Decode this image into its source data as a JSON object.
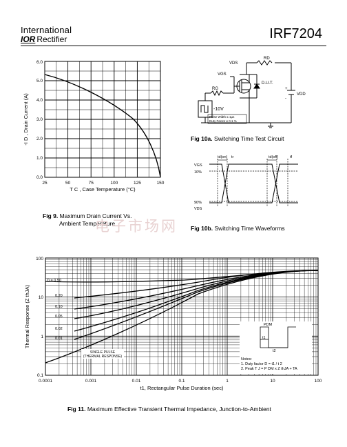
{
  "header": {
    "company_line1": "International",
    "company_logo": "IOR",
    "company_line2": "Rectifier",
    "part_number": "IRF7204"
  },
  "watermark": "电子市场网",
  "fig9": {
    "caption_num": "Fig 9.",
    "caption_line1": "Maximum Drain Current Vs.",
    "caption_line2": "Ambient Temperature",
    "ylabel": "-I D , Drain Current (A)",
    "xlabel": "T C , Case Temperature   (°C)",
    "yticks": [
      "0.0",
      "1.0",
      "2.0",
      "3.0",
      "4.0",
      "5.0",
      "6.0"
    ],
    "xticks": [
      "25",
      "50",
      "75",
      "100",
      "125",
      "150"
    ]
  },
  "fig10a": {
    "caption_num": "Fig 10a.",
    "caption": "Switching Time Test Circuit",
    "labels": {
      "vds": "VDS",
      "rd": "RD",
      "vgs": "VGS",
      "dut": "D.U.T.",
      "rg": "RG",
      "vdd": "VDD",
      "plus": "+",
      "minus": "-",
      "v10": "-10V",
      "pw": "Pulse Width ≤  1µs",
      "duty": "Duty Factor ≤  0.1  %"
    }
  },
  "fig10b": {
    "caption_num": "Fig 10b.",
    "caption": "Switching Time Waveforms",
    "labels": {
      "tdon": "td(on)",
      "tr": "tr",
      "tdoff": "td(off)",
      "tf": "tf",
      "vgs": "VGS",
      "p10": "10%",
      "p90": "90%",
      "vds": "VDS"
    }
  },
  "fig11": {
    "caption_num": "Fig 11.",
    "caption": "Maximum Effective Transient Thermal Impedance, Junction-to-Ambient",
    "ylabel": "Thermal Response  (Z thJA)",
    "xlabel": "t1, Rectangular Pulse Duration (sec)",
    "yticks": [
      "0.1",
      "1",
      "10",
      "100"
    ],
    "xticks": [
      "0.0001",
      "0.001",
      "0.01",
      "0.1",
      "1",
      "10",
      "100"
    ],
    "curve_labels": [
      "D = 0.50",
      "0.20",
      "0.10",
      "0.05",
      "0.02",
      "0.01"
    ],
    "single_pulse_1": "SINGLE PULSE",
    "single_pulse_2": "(THERMAL RESPONSE)",
    "notes_title": "Notes:",
    "note1": "1. Duty factor D =   t1 / t 2",
    "note2": "2. Peak T J = P DM x Z thJA  + TA",
    "pdm": "PDM",
    "t1": "t1",
    "t2": "t2"
  }
}
